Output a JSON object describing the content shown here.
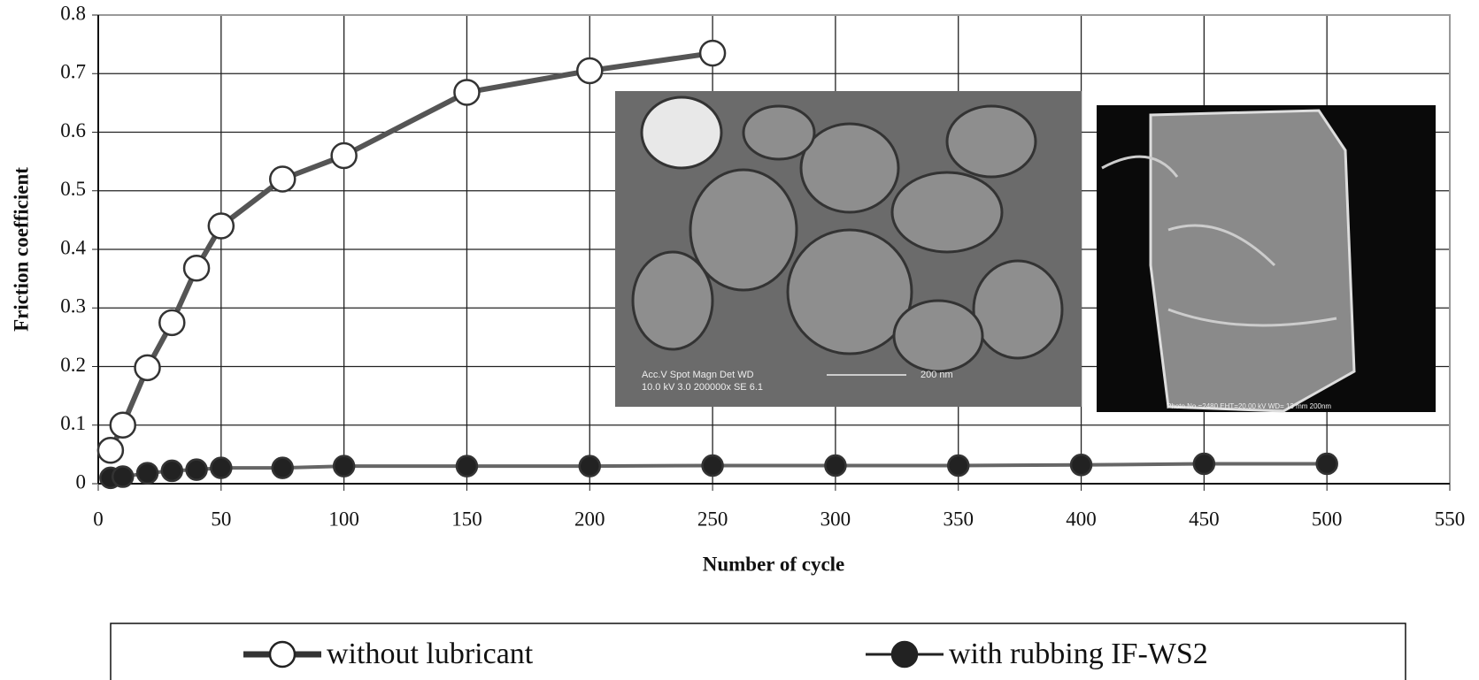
{
  "chart_data": {
    "type": "line",
    "x_label": "Number of cycle",
    "y_label": "Friction coefficient",
    "xlim": [
      0,
      550
    ],
    "xticks": [
      0,
      50,
      100,
      150,
      200,
      250,
      300,
      350,
      400,
      450,
      500,
      550
    ],
    "ylim": [
      0,
      0.8
    ],
    "yticks": [
      0,
      0.1,
      0.2,
      0.3,
      0.4,
      0.5,
      0.6,
      0.7,
      0.8
    ],
    "grid": true,
    "series": [
      {
        "name": "without lubricant",
        "color": "#555555",
        "marker": "open-circle",
        "x": [
          5,
          10,
          20,
          30,
          40,
          50,
          75,
          100,
          150,
          200,
          250
        ],
        "values": [
          0.057,
          0.1,
          0.198,
          0.275,
          0.368,
          0.44,
          0.52,
          0.56,
          0.668,
          0.705,
          0.735
        ]
      },
      {
        "name": "with rubbing IF-WS2",
        "color": "#666666",
        "marker": "filled-circle",
        "x": [
          5,
          10,
          20,
          30,
          40,
          50,
          75,
          100,
          150,
          200,
          250,
          300,
          350,
          400,
          450,
          500
        ],
        "values": [
          0.01,
          0.012,
          0.018,
          0.022,
          0.024,
          0.027,
          0.027,
          0.03,
          0.03,
          0.03,
          0.031,
          0.031,
          0.031,
          0.032,
          0.034,
          0.034
        ]
      }
    ],
    "insets": [
      {
        "line1": "Acc.V   Spot Magn    Det  WD",
        "line2": "10.0 kV 3.0   200000x SE   6.1",
        "scale": "200 nm"
      },
      {
        "caption": "Photo No.=2480   EHT=20.00 kV  WD= 13 mm      200nm"
      }
    ]
  }
}
